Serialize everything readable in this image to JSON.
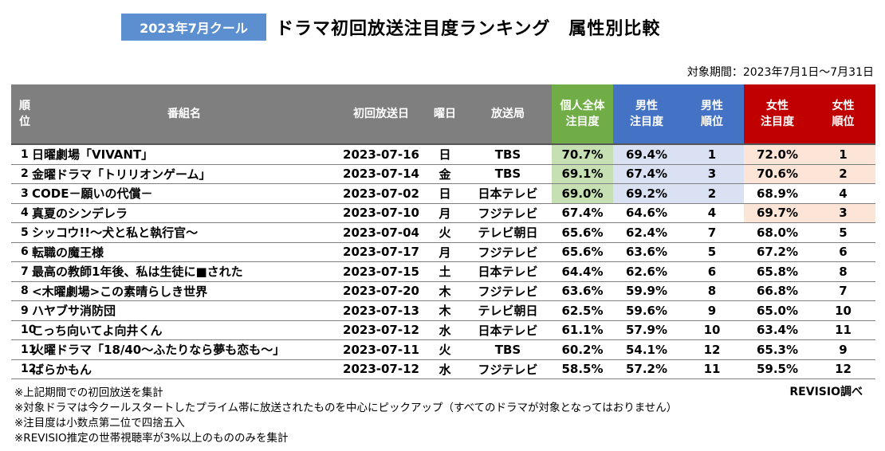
{
  "header": {
    "badge": "2023年7月クール",
    "title": "ドラマ初回放送注目度ランキング　属性別比較",
    "period": "対象期間：2023年7月1日〜7月31日"
  },
  "table": {
    "columns": {
      "rank": "順\n位",
      "program": "番組名",
      "air_date": "初回放送日",
      "weekday": "曜日",
      "station": "放送局",
      "overall": "個人全体\n注目度",
      "male": "男性\n注目度",
      "male_rank": "男性\n順位",
      "female": "女性\n注目度",
      "female_rank": "女性\n順位"
    },
    "rows": [
      {
        "rank": "1",
        "program": "日曜劇場「VIVANT」",
        "date": "2023-07-16",
        "day": "日",
        "station": "TBS",
        "overall": "70.7%",
        "male": "69.4%",
        "male_rank": "1",
        "female": "72.0%",
        "female_rank": "1"
      },
      {
        "rank": "2",
        "program": "金曜ドラマ「トリリオンゲーム」",
        "date": "2023-07-14",
        "day": "金",
        "station": "TBS",
        "overall": "69.1%",
        "male": "67.4%",
        "male_rank": "3",
        "female": "70.6%",
        "female_rank": "2"
      },
      {
        "rank": "3",
        "program": "CODE－願いの代償－",
        "date": "2023-07-02",
        "day": "日",
        "station": "日本テレビ",
        "overall": "69.0%",
        "male": "69.2%",
        "male_rank": "2",
        "female": "68.9%",
        "female_rank": "4"
      },
      {
        "rank": "4",
        "program": "真夏のシンデレラ",
        "date": "2023-07-10",
        "day": "月",
        "station": "フジテレビ",
        "overall": "67.4%",
        "male": "64.6%",
        "male_rank": "4",
        "female": "69.7%",
        "female_rank": "3"
      },
      {
        "rank": "5",
        "program": "シッコウ!!〜犬と私と執行官〜",
        "date": "2023-07-04",
        "day": "火",
        "station": "テレビ朝日",
        "overall": "65.6%",
        "male": "62.4%",
        "male_rank": "7",
        "female": "68.0%",
        "female_rank": "5"
      },
      {
        "rank": "6",
        "program": "転職の魔王様",
        "date": "2023-07-17",
        "day": "月",
        "station": "フジテレビ",
        "overall": "65.6%",
        "male": "63.6%",
        "male_rank": "5",
        "female": "67.2%",
        "female_rank": "6"
      },
      {
        "rank": "7",
        "program": "最高の教師1年後、私は生徒に■された",
        "date": "2023-07-15",
        "day": "土",
        "station": "日本テレビ",
        "overall": "64.4%",
        "male": "62.6%",
        "male_rank": "6",
        "female": "65.8%",
        "female_rank": "8"
      },
      {
        "rank": "8",
        "program": "<木曜劇場>この素晴らしき世界",
        "date": "2023-07-20",
        "day": "木",
        "station": "フジテレビ",
        "overall": "63.6%",
        "male": "59.9%",
        "male_rank": "8",
        "female": "66.8%",
        "female_rank": "7"
      },
      {
        "rank": "9",
        "program": "ハヤブサ消防団",
        "date": "2023-07-13",
        "day": "木",
        "station": "テレビ朝日",
        "overall": "62.5%",
        "male": "59.6%",
        "male_rank": "9",
        "female": "65.0%",
        "female_rank": "10"
      },
      {
        "rank": "10",
        "program": "こっち向いてよ向井くん",
        "date": "2023-07-12",
        "day": "水",
        "station": "日本テレビ",
        "overall": "61.1%",
        "male": "57.9%",
        "male_rank": "10",
        "female": "63.4%",
        "female_rank": "11"
      },
      {
        "rank": "11",
        "program": "火曜ドラマ「18/40〜ふたりなら夢も恋も〜」",
        "date": "2023-07-11",
        "day": "火",
        "station": "TBS",
        "overall": "60.2%",
        "male": "54.1%",
        "male_rank": "12",
        "female": "65.3%",
        "female_rank": "9"
      },
      {
        "rank": "12",
        "program": "ばらかもん",
        "date": "2023-07-12",
        "day": "水",
        "station": "フジテレビ",
        "overall": "58.5%",
        "male": "57.2%",
        "male_rank": "11",
        "female": "59.5%",
        "female_rank": "12"
      }
    ],
    "highlight_top": 3,
    "colors": {
      "header_gray": "#7f7f7f",
      "overall_header": "#70ad47",
      "male_header": "#4472c4",
      "female_header": "#c00000",
      "overall_highlight": "#c6e0b4",
      "male_highlight": "#d9e1f2",
      "female_highlight": "#fce4d6"
    }
  },
  "credit": "REVISIO調べ",
  "notes": [
    "※上記期間での初回放送を集計",
    "※対象ドラマは今クールスタートしたプライム帯に放送されたものを中心にピックアップ（すべてのドラマが対象となってはおりません）",
    "※注目度は小数点第二位で四捨五入",
    "※REVISIO推定の世帯視聴率が3%以上のもののみを集計"
  ]
}
